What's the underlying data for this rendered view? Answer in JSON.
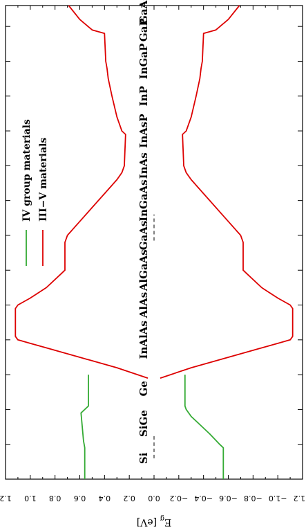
{
  "chart_data": {
    "type": "line",
    "title": "",
    "ylabel": "E_g [eV]",
    "ylabel_main": "E",
    "ylabel_sub": "g",
    "ylabel_unit": " [eV]",
    "xlabel": "",
    "ylim": [
      -1.2,
      1.2
    ],
    "yticks": [
      "1.2",
      "1.0",
      "0.8",
      "0.6",
      "0.4",
      "0.2",
      "0.0",
      "−0.2",
      "−0.4",
      "−0.6",
      "−0.8",
      "−1.0",
      "−1.2"
    ],
    "ytick_values": [
      1.2,
      1.0,
      0.8,
      0.6,
      0.4,
      0.2,
      0.0,
      -0.2,
      -0.4,
      -0.6,
      -0.8,
      -1.0,
      -1.2
    ],
    "xlim": [
      0,
      13.6
    ],
    "materials": [
      {
        "name": "Si",
        "x": 0.6
      },
      {
        "name": "SiGe",
        "x": 1.6
      },
      {
        "name": "Ge",
        "x": 2.6
      },
      {
        "name": "InAlAs",
        "x": 4.0
      },
      {
        "name": "AlAs",
        "x": 5.0
      },
      {
        "name": "AlGaAs",
        "x": 6.0
      },
      {
        "name": "GaAs",
        "x": 7.0
      },
      {
        "name": "InGaAs",
        "x": 8.0
      },
      {
        "name": "InAs",
        "x": 9.0
      },
      {
        "name": "InAsP",
        "x": 10.0
      },
      {
        "name": "InP",
        "x": 11.0
      },
      {
        "name": "InGaP",
        "x": 12.0
      },
      {
        "name": "GaP",
        "x": 12.9
      },
      {
        "name": "GaAsP",
        "x": 13.6
      }
    ],
    "legend": {
      "position": "upper-middle",
      "entries": [
        {
          "label": "IV group materials",
          "color": "#33aa33"
        },
        {
          "label": "III−V materials",
          "color": "#dd0000"
        }
      ]
    },
    "series": [
      {
        "name": "IV group materials",
        "color": "#33aa33",
        "upper": [
          [
            0,
            0.56
          ],
          [
            0.9,
            0.56
          ],
          [
            1.1,
            0.57
          ],
          [
            1.5,
            0.58
          ],
          [
            1.9,
            0.59
          ],
          [
            2.1,
            0.53
          ],
          [
            3.0,
            0.53
          ]
        ],
        "lower": [
          [
            0,
            -0.56
          ],
          [
            0.9,
            -0.56
          ],
          [
            1.0,
            -0.53
          ],
          [
            1.3,
            -0.45
          ],
          [
            1.6,
            -0.36
          ],
          [
            1.8,
            -0.3
          ],
          [
            2.0,
            -0.26
          ],
          [
            2.1,
            -0.25
          ],
          [
            3.0,
            -0.25
          ]
        ]
      },
      {
        "name": "III−V materials",
        "color": "#dd0000",
        "upper": [
          [
            2.9,
            0.05
          ],
          [
            3.2,
            0.3
          ],
          [
            3.5,
            0.6
          ],
          [
            3.75,
            0.85
          ],
          [
            3.9,
            1.0
          ],
          [
            4.0,
            1.1
          ],
          [
            4.1,
            1.12
          ],
          [
            4.9,
            1.12
          ],
          [
            5.0,
            1.1
          ],
          [
            5.2,
            1.0
          ],
          [
            5.5,
            0.87
          ],
          [
            5.9,
            0.75
          ],
          [
            6.0,
            0.72
          ],
          [
            6.8,
            0.72
          ],
          [
            7.0,
            0.7
          ],
          [
            7.4,
            0.6
          ],
          [
            8.0,
            0.45
          ],
          [
            8.6,
            0.3
          ],
          [
            8.8,
            0.26
          ],
          [
            9.0,
            0.24
          ],
          [
            9.9,
            0.23
          ],
          [
            10.0,
            0.26
          ],
          [
            10.4,
            0.3
          ],
          [
            11.0,
            0.34
          ],
          [
            11.5,
            0.37
          ],
          [
            11.8,
            0.38
          ],
          [
            12.0,
            0.39
          ],
          [
            12.8,
            0.4
          ],
          [
            12.9,
            0.5
          ],
          [
            13.2,
            0.6
          ],
          [
            13.6,
            0.69
          ]
        ],
        "lower": [
          [
            2.9,
            -0.05
          ],
          [
            3.2,
            -0.3
          ],
          [
            3.5,
            -0.6
          ],
          [
            3.75,
            -0.85
          ],
          [
            3.9,
            -1.0
          ],
          [
            4.0,
            -1.1
          ],
          [
            4.1,
            -1.12
          ],
          [
            4.9,
            -1.12
          ],
          [
            5.0,
            -1.1
          ],
          [
            5.2,
            -1.0
          ],
          [
            5.5,
            -0.87
          ],
          [
            5.9,
            -0.75
          ],
          [
            6.0,
            -0.72
          ],
          [
            6.8,
            -0.72
          ],
          [
            7.0,
            -0.7
          ],
          [
            7.4,
            -0.6
          ],
          [
            8.0,
            -0.45
          ],
          [
            8.6,
            -0.3
          ],
          [
            8.8,
            -0.26
          ],
          [
            9.0,
            -0.24
          ],
          [
            9.9,
            -0.23
          ],
          [
            10.0,
            -0.26
          ],
          [
            10.4,
            -0.3
          ],
          [
            11.0,
            -0.34
          ],
          [
            11.5,
            -0.37
          ],
          [
            11.8,
            -0.38
          ],
          [
            12.0,
            -0.39
          ],
          [
            12.8,
            -0.4
          ],
          [
            12.9,
            -0.5
          ],
          [
            13.2,
            -0.6
          ],
          [
            13.6,
            -0.69
          ]
        ]
      }
    ],
    "reference_segments": [
      {
        "x": [
          0.6,
          1.3
        ],
        "y": 0.0,
        "style": "dashed"
      },
      {
        "x": [
          6.85,
          7.6
        ],
        "y": 0.0,
        "style": "dashed"
      }
    ]
  }
}
